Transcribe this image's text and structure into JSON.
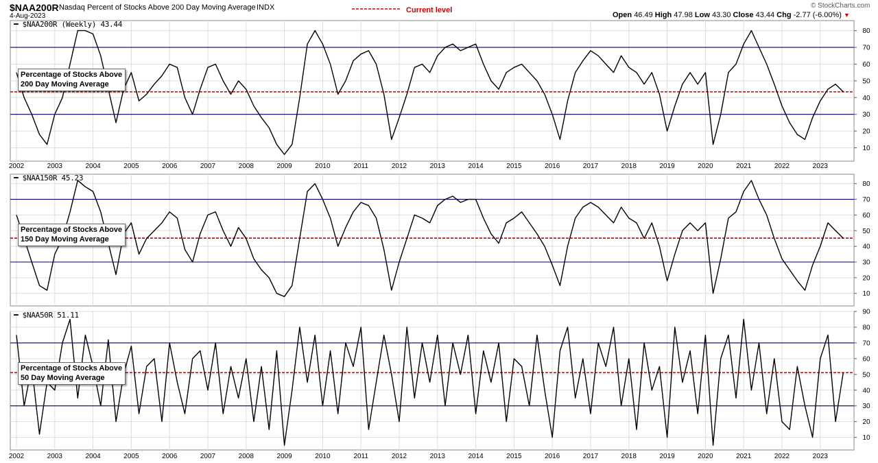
{
  "header": {
    "symbol": "$NAA200R",
    "description": "Nasdaq Percent of Stocks Above 200 Day Moving Average",
    "exchange": "INDX",
    "date": "4-Aug-2023",
    "current_level_label": "Current level",
    "watermark": "© StockCharts.com",
    "ohlc": {
      "open_label": "Open",
      "open": "46.49",
      "high_label": "High",
      "high": "47.98",
      "low_label": "Low",
      "low": "43.30",
      "close_label": "Close",
      "close": "43.44",
      "chg_label": "Chg",
      "chg": "-2.77 (-6.00%)",
      "chg_arrow": "▼"
    }
  },
  "colors": {
    "line": "#000000",
    "guide": "#000066",
    "current": "#cc0000",
    "grid": "#dddddd"
  },
  "chart_data": [
    {
      "type": "line",
      "panel_label": "$NAA200R (Weekly) 43.44",
      "annotation": [
        "Percentage of Stocks Above",
        "200 Day Moving Average"
      ],
      "ylim": [
        2,
        86
      ],
      "yticks": [
        10,
        20,
        30,
        40,
        50,
        60,
        70,
        80
      ],
      "guides": [
        30,
        70
      ],
      "current_level": 43.44,
      "x_tick_labels": [
        "2002",
        "2003",
        "2004",
        "2005",
        "2006",
        "2007",
        "2008",
        "2009",
        "2010",
        "2011",
        "2012",
        "2013",
        "2014",
        "2015",
        "2016",
        "2017",
        "2018",
        "2019",
        "2020",
        "2021",
        "2022",
        "2023"
      ],
      "x": [
        2002.0,
        2002.2,
        2002.4,
        2002.6,
        2002.8,
        2003.0,
        2003.2,
        2003.4,
        2003.6,
        2003.8,
        2004.0,
        2004.2,
        2004.4,
        2004.6,
        2004.8,
        2005.0,
        2005.2,
        2005.4,
        2005.6,
        2005.8,
        2006.0,
        2006.2,
        2006.4,
        2006.6,
        2006.8,
        2007.0,
        2007.2,
        2007.4,
        2007.6,
        2007.8,
        2008.0,
        2008.2,
        2008.4,
        2008.6,
        2008.8,
        2009.0,
        2009.2,
        2009.4,
        2009.6,
        2009.8,
        2010.0,
        2010.2,
        2010.4,
        2010.6,
        2010.8,
        2011.0,
        2011.2,
        2011.4,
        2011.6,
        2011.8,
        2012.0,
        2012.2,
        2012.4,
        2012.6,
        2012.8,
        2013.0,
        2013.2,
        2013.4,
        2013.6,
        2013.8,
        2014.0,
        2014.2,
        2014.4,
        2014.6,
        2014.8,
        2015.0,
        2015.2,
        2015.4,
        2015.6,
        2015.8,
        2016.0,
        2016.2,
        2016.4,
        2016.6,
        2016.8,
        2017.0,
        2017.2,
        2017.4,
        2017.6,
        2017.8,
        2018.0,
        2018.2,
        2018.4,
        2018.6,
        2018.8,
        2019.0,
        2019.2,
        2019.4,
        2019.6,
        2019.8,
        2020.0,
        2020.2,
        2020.4,
        2020.6,
        2020.8,
        2021.0,
        2021.2,
        2021.4,
        2021.6,
        2021.8,
        2022.0,
        2022.2,
        2022.4,
        2022.6,
        2022.8,
        2023.0,
        2023.2,
        2023.4,
        2023.6
      ],
      "values": [
        55,
        40,
        30,
        18,
        12,
        30,
        40,
        60,
        80,
        80,
        78,
        65,
        45,
        25,
        45,
        55,
        38,
        42,
        48,
        53,
        60,
        58,
        40,
        30,
        45,
        58,
        60,
        50,
        42,
        50,
        45,
        35,
        28,
        22,
        12,
        6,
        12,
        40,
        72,
        80,
        72,
        60,
        42,
        50,
        62,
        66,
        68,
        60,
        42,
        15,
        28,
        42,
        58,
        60,
        55,
        65,
        70,
        72,
        68,
        70,
        72,
        60,
        50,
        45,
        55,
        58,
        60,
        55,
        50,
        42,
        30,
        15,
        38,
        55,
        62,
        68,
        65,
        60,
        55,
        65,
        58,
        55,
        48,
        55,
        42,
        20,
        35,
        48,
        55,
        48,
        55,
        12,
        30,
        55,
        60,
        72,
        80,
        70,
        60,
        48,
        35,
        25,
        18,
        15,
        28,
        38,
        45,
        48,
        43.44
      ]
    },
    {
      "type": "line",
      "panel_label": "$NAA150R 45.23",
      "annotation": [
        "Percentage of Stocks Above",
        "150 Day Moving Average"
      ],
      "ylim": [
        2,
        86
      ],
      "yticks": [
        10,
        20,
        30,
        40,
        50,
        60,
        70,
        80
      ],
      "guides": [
        30,
        70
      ],
      "current_level": 45.23,
      "x_tick_labels": [],
      "x": [
        2002.0,
        2002.2,
        2002.4,
        2002.6,
        2002.8,
        2003.0,
        2003.2,
        2003.4,
        2003.6,
        2003.8,
        2004.0,
        2004.2,
        2004.4,
        2004.6,
        2004.8,
        2005.0,
        2005.2,
        2005.4,
        2005.6,
        2005.8,
        2006.0,
        2006.2,
        2006.4,
        2006.6,
        2006.8,
        2007.0,
        2007.2,
        2007.4,
        2007.6,
        2007.8,
        2008.0,
        2008.2,
        2008.4,
        2008.6,
        2008.8,
        2009.0,
        2009.2,
        2009.4,
        2009.6,
        2009.8,
        2010.0,
        2010.2,
        2010.4,
        2010.6,
        2010.8,
        2011.0,
        2011.2,
        2011.4,
        2011.6,
        2011.8,
        2012.0,
        2012.2,
        2012.4,
        2012.6,
        2012.8,
        2013.0,
        2013.2,
        2013.4,
        2013.6,
        2013.8,
        2014.0,
        2014.2,
        2014.4,
        2014.6,
        2014.8,
        2015.0,
        2015.2,
        2015.4,
        2015.6,
        2015.8,
        2016.0,
        2016.2,
        2016.4,
        2016.6,
        2016.8,
        2017.0,
        2017.2,
        2017.4,
        2017.6,
        2017.8,
        2018.0,
        2018.2,
        2018.4,
        2018.6,
        2018.8,
        2019.0,
        2019.2,
        2019.4,
        2019.6,
        2019.8,
        2020.0,
        2020.2,
        2020.4,
        2020.6,
        2020.8,
        2021.0,
        2021.2,
        2021.4,
        2021.6,
        2021.8,
        2022.0,
        2022.2,
        2022.4,
        2022.6,
        2022.8,
        2023.0,
        2023.2,
        2023.4,
        2023.6
      ],
      "values": [
        60,
        45,
        30,
        15,
        12,
        35,
        45,
        62,
        82,
        78,
        75,
        62,
        42,
        22,
        48,
        55,
        35,
        45,
        50,
        55,
        62,
        58,
        38,
        30,
        48,
        60,
        62,
        50,
        40,
        52,
        45,
        32,
        25,
        20,
        10,
        8,
        15,
        45,
        75,
        80,
        70,
        58,
        40,
        52,
        62,
        68,
        66,
        58,
        38,
        12,
        30,
        45,
        60,
        58,
        55,
        66,
        70,
        72,
        68,
        70,
        70,
        58,
        48,
        42,
        55,
        58,
        62,
        55,
        48,
        40,
        28,
        15,
        40,
        58,
        65,
        68,
        65,
        60,
        55,
        65,
        58,
        55,
        45,
        55,
        40,
        18,
        35,
        50,
        55,
        50,
        55,
        10,
        32,
        58,
        62,
        75,
        82,
        70,
        60,
        45,
        32,
        25,
        18,
        12,
        28,
        40,
        55,
        50,
        45.23
      ]
    },
    {
      "type": "line",
      "panel_label": "$NAA50R 51.11",
      "annotation": [
        "Percentage of Stocks Above",
        "50 Day Moving Average"
      ],
      "ylim": [
        2,
        90
      ],
      "yticks": [
        10,
        20,
        30,
        40,
        50,
        60,
        70,
        80,
        90
      ],
      "guides": [
        30,
        70
      ],
      "current_level": 51.11,
      "x_tick_labels": [
        "2002",
        "2003",
        "2004",
        "2005",
        "2006",
        "2007",
        "2008",
        "2009",
        "2010",
        "2011",
        "2012",
        "2013",
        "2014",
        "2015",
        "2016",
        "2017",
        "2018",
        "2019",
        "2020",
        "2021",
        "2022",
        "2023"
      ],
      "x": [
        2002.0,
        2002.2,
        2002.4,
        2002.6,
        2002.8,
        2003.0,
        2003.2,
        2003.4,
        2003.6,
        2003.8,
        2004.0,
        2004.2,
        2004.4,
        2004.6,
        2004.8,
        2005.0,
        2005.2,
        2005.4,
        2005.6,
        2005.8,
        2006.0,
        2006.2,
        2006.4,
        2006.6,
        2006.8,
        2007.0,
        2007.2,
        2007.4,
        2007.6,
        2007.8,
        2008.0,
        2008.2,
        2008.4,
        2008.6,
        2008.8,
        2009.0,
        2009.2,
        2009.4,
        2009.6,
        2009.8,
        2010.0,
        2010.2,
        2010.4,
        2010.6,
        2010.8,
        2011.0,
        2011.2,
        2011.4,
        2011.6,
        2011.8,
        2012.0,
        2012.2,
        2012.4,
        2012.6,
        2012.8,
        2013.0,
        2013.2,
        2013.4,
        2013.6,
        2013.8,
        2014.0,
        2014.2,
        2014.4,
        2014.6,
        2014.8,
        2015.0,
        2015.2,
        2015.4,
        2015.6,
        2015.8,
        2016.0,
        2016.2,
        2016.4,
        2016.6,
        2016.8,
        2017.0,
        2017.2,
        2017.4,
        2017.6,
        2017.8,
        2018.0,
        2018.2,
        2018.4,
        2018.6,
        2018.8,
        2019.0,
        2019.2,
        2019.4,
        2019.6,
        2019.8,
        2020.0,
        2020.2,
        2020.4,
        2020.6,
        2020.8,
        2021.0,
        2021.2,
        2021.4,
        2021.6,
        2021.8,
        2022.0,
        2022.2,
        2022.4,
        2022.6,
        2022.8,
        2023.0,
        2023.2,
        2023.4,
        2023.6
      ],
      "values": [
        75,
        30,
        55,
        12,
        45,
        40,
        70,
        85,
        35,
        75,
        55,
        30,
        72,
        20,
        50,
        68,
        25,
        55,
        60,
        20,
        70,
        45,
        25,
        60,
        65,
        40,
        70,
        25,
        55,
        35,
        60,
        20,
        55,
        15,
        65,
        5,
        40,
        80,
        45,
        75,
        30,
        65,
        25,
        70,
        55,
        80,
        15,
        45,
        75,
        50,
        20,
        80,
        35,
        70,
        45,
        75,
        30,
        70,
        50,
        75,
        25,
        65,
        45,
        70,
        20,
        60,
        55,
        30,
        75,
        40,
        10,
        65,
        80,
        35,
        60,
        25,
        70,
        55,
        80,
        30,
        60,
        15,
        70,
        40,
        55,
        10,
        80,
        45,
        65,
        25,
        75,
        5,
        60,
        75,
        35,
        85,
        40,
        70,
        25,
        60,
        20,
        15,
        55,
        30,
        10,
        60,
        75,
        20,
        51.11
      ]
    }
  ]
}
